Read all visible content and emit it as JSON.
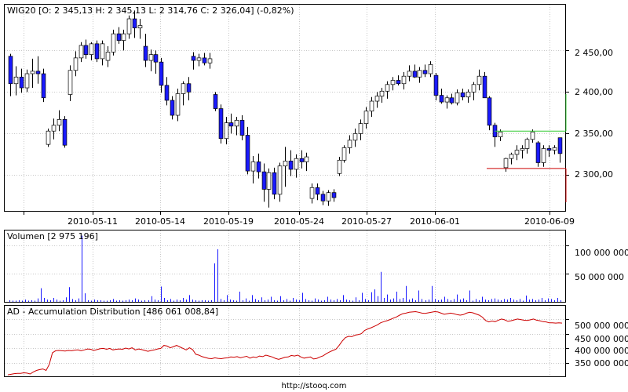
{
  "footer": "http://stooq.com",
  "colors": {
    "down": "#1a1aff",
    "up": "#ffffff",
    "candle_border": "#000000",
    "volume": "#1a1aff",
    "ad_line": "#cc0000",
    "marker_green": "#33cc33",
    "marker_red": "#cc0000",
    "grid": "#c8c8c8",
    "frame": "#000000"
  },
  "chart_data": [
    {
      "type": "candlestick",
      "header": "WIG20 [O: 2 345,13  H: 2 345,13  L: 2 314,76  C: 2 326,04] (-0,82%)",
      "x_tick_labels": [
        "2010-05-11",
        "2010-05-14",
        "2010-05-19",
        "2010-05-24",
        "2010-05-27",
        "2010-06-01",
        "2010-06-09"
      ],
      "y_tick_labels": [
        "2 450,00",
        "2 400,00",
        "2 350,00",
        "2 300,00"
      ],
      "y_ticks": [
        2450,
        2400,
        2350,
        2300
      ],
      "ylim": [
        2257,
        2505
      ],
      "grid": true,
      "markers": {
        "green_level": 2353,
        "red_level": 2308
      },
      "ohlc": [
        [
          2443,
          2446,
          2395,
          2410
        ],
        [
          2410,
          2431,
          2396,
          2418
        ],
        [
          2418,
          2428,
          2399,
          2405
        ],
        [
          2405,
          2427,
          2400,
          2422
        ],
        [
          2422,
          2440,
          2405,
          2425
        ],
        [
          2425,
          2443,
          2410,
          2422
        ],
        [
          2422,
          2428,
          2388,
          2393
        ],
        [
          2337,
          2356,
          2334,
          2353
        ],
        [
          2353,
          2368,
          2343,
          2360
        ],
        [
          2360,
          2378,
          2353,
          2367
        ],
        [
          2367,
          2371,
          2333,
          2336
        ],
        [
          2397,
          2432,
          2389,
          2426
        ],
        [
          2426,
          2449,
          2419,
          2441
        ],
        [
          2441,
          2460,
          2436,
          2456
        ],
        [
          2456,
          2463,
          2440,
          2445
        ],
        [
          2445,
          2460,
          2438,
          2458
        ],
        [
          2458,
          2462,
          2436,
          2440
        ],
        [
          2440,
          2462,
          2432,
          2458
        ],
        [
          2438,
          2455,
          2430,
          2448
        ],
        [
          2448,
          2475,
          2444,
          2470
        ],
        [
          2470,
          2478,
          2458,
          2462
        ],
        [
          2462,
          2475,
          2450,
          2470
        ],
        [
          2470,
          2492,
          2464,
          2488
        ],
        [
          2488,
          2498,
          2465,
          2477
        ],
        [
          2477,
          2488,
          2464,
          2480
        ],
        [
          2455,
          2470,
          2430,
          2438
        ],
        [
          2438,
          2451,
          2425,
          2445
        ],
        [
          2445,
          2450,
          2422,
          2436
        ],
        [
          2436,
          2441,
          2399,
          2408
        ],
        [
          2408,
          2418,
          2384,
          2390
        ],
        [
          2390,
          2395,
          2367,
          2372
        ],
        [
          2372,
          2404,
          2365,
          2398
        ],
        [
          2398,
          2413,
          2384,
          2410
        ],
        [
          2410,
          2418,
          2390,
          2400
        ],
        [
          2443,
          2448,
          2427,
          2438
        ],
        [
          2438,
          2446,
          2431,
          2441
        ],
        [
          2441,
          2447,
          2432,
          2435
        ],
        [
          2435,
          2447,
          2428,
          2440
        ],
        [
          2397,
          2400,
          2377,
          2380
        ],
        [
          2380,
          2385,
          2338,
          2344
        ],
        [
          2344,
          2370,
          2337,
          2363
        ],
        [
          2363,
          2374,
          2350,
          2359
        ],
        [
          2359,
          2370,
          2348,
          2366
        ],
        [
          2366,
          2372,
          2342,
          2348
        ],
        [
          2348,
          2358,
          2301,
          2305
        ],
        [
          2305,
          2323,
          2290,
          2316
        ],
        [
          2316,
          2326,
          2296,
          2304
        ],
        [
          2304,
          2314,
          2268,
          2283
        ],
        [
          2283,
          2308,
          2261,
          2303
        ],
        [
          2303,
          2309,
          2271,
          2277
        ],
        [
          2277,
          2315,
          2268,
          2311
        ],
        [
          2311,
          2334,
          2286,
          2317
        ],
        [
          2317,
          2330,
          2299,
          2307
        ],
        [
          2307,
          2325,
          2297,
          2320
        ],
        [
          2320,
          2330,
          2308,
          2316
        ],
        [
          2316,
          2327,
          2305,
          2322
        ],
        [
          2272,
          2290,
          2266,
          2285
        ],
        [
          2285,
          2290,
          2270,
          2277
        ],
        [
          2277,
          2281,
          2264,
          2269
        ],
        [
          2269,
          2282,
          2263,
          2279
        ],
        [
          2279,
          2283,
          2268,
          2273
        ],
        [
          2302,
          2322,
          2299,
          2318
        ],
        [
          2318,
          2336,
          2315,
          2333
        ],
        [
          2333,
          2348,
          2326,
          2342
        ],
        [
          2342,
          2356,
          2334,
          2350
        ],
        [
          2350,
          2367,
          2342,
          2362
        ],
        [
          2362,
          2382,
          2356,
          2377
        ],
        [
          2377,
          2394,
          2370,
          2389
        ],
        [
          2389,
          2400,
          2381,
          2395
        ],
        [
          2395,
          2405,
          2387,
          2401
        ],
        [
          2401,
          2413,
          2392,
          2409
        ],
        [
          2409,
          2418,
          2402,
          2414
        ],
        [
          2414,
          2420,
          2408,
          2410
        ],
        [
          2410,
          2424,
          2403,
          2419
        ],
        [
          2419,
          2432,
          2413,
          2425
        ],
        [
          2425,
          2433,
          2417,
          2418
        ],
        [
          2418,
          2430,
          2411,
          2426
        ],
        [
          2426,
          2433,
          2418,
          2422
        ],
        [
          2422,
          2437,
          2418,
          2433
        ],
        [
          2420,
          2423,
          2390,
          2396
        ],
        [
          2396,
          2404,
          2386,
          2388
        ],
        [
          2388,
          2396,
          2380,
          2393
        ],
        [
          2393,
          2398,
          2385,
          2387
        ],
        [
          2387,
          2403,
          2384,
          2399
        ],
        [
          2399,
          2404,
          2390,
          2394
        ],
        [
          2394,
          2403,
          2387,
          2400
        ],
        [
          2400,
          2412,
          2390,
          2409
        ],
        [
          2409,
          2427,
          2402,
          2419
        ],
        [
          2419,
          2424,
          2393,
          2393
        ],
        [
          2393,
          2395,
          2354,
          2360
        ],
        [
          2360,
          2363,
          2334,
          2346
        ],
        [
          2346,
          2355,
          2341,
          2352
        ],
        [
          2309,
          2321,
          2304,
          2320
        ],
        [
          2320,
          2327,
          2313,
          2325
        ],
        [
          2325,
          2336,
          2318,
          2330
        ],
        [
          2330,
          2336,
          2320,
          2332
        ],
        [
          2332,
          2345,
          2326,
          2343
        ],
        [
          2343,
          2355,
          2339,
          2352
        ],
        [
          2339,
          2341,
          2310,
          2315
        ],
        [
          2315,
          2336,
          2310,
          2332
        ],
        [
          2332,
          2336,
          2322,
          2330
        ],
        [
          2330,
          2336,
          2325,
          2333
        ],
        [
          2345,
          2345,
          2315,
          2326
        ]
      ]
    },
    {
      "type": "bar",
      "header": "Volumen [2 975 196]",
      "y_tick_labels": [
        "100 000 000",
        "50 000 000"
      ],
      "y_ticks": [
        100000000,
        50000000
      ],
      "ylim": [
        0,
        126000000
      ],
      "grid": true,
      "values": [
        3000000,
        2000000,
        2000000,
        3000000,
        2000000,
        4000000,
        2000000,
        3000000,
        2000000,
        6000000,
        24000000,
        7000000,
        4000000,
        3000000,
        7000000,
        4000000,
        2000000,
        3000000,
        8000000,
        26000000,
        5000000,
        3000000,
        6000000,
        117000000,
        15000000,
        3000000,
        2000000,
        4000000,
        3000000,
        3000000,
        2000000,
        2000000,
        3000000,
        5000000,
        2000000,
        3000000,
        2000000,
        3000000,
        4000000,
        3000000,
        6000000,
        4000000,
        2000000,
        3000000,
        3000000,
        10000000,
        4000000,
        3000000,
        27000000,
        7000000,
        3000000,
        5000000,
        2000000,
        4000000,
        3000000,
        7000000,
        4000000,
        12000000,
        4000000,
        3000000,
        2000000,
        3000000,
        3000000,
        2000000,
        3000000,
        68000000,
        93000000,
        5000000,
        3000000,
        12000000,
        4000000,
        3000000,
        2000000,
        18000000,
        3000000,
        6000000,
        2000000,
        12000000,
        5000000,
        3000000,
        8000000,
        3000000,
        4000000,
        9000000,
        3000000,
        2000000,
        10000000,
        3000000,
        5000000,
        2000000,
        7000000,
        4000000,
        3000000,
        16000000,
        5000000,
        3000000,
        2000000,
        6000000,
        4000000,
        2000000,
        3000000,
        9000000,
        4000000,
        3000000,
        5000000,
        3000000,
        12000000,
        4000000,
        3000000,
        2000000,
        8000000,
        3000000,
        16000000,
        5000000,
        3000000,
        17000000,
        22000000,
        10000000,
        53000000,
        7000000,
        13000000,
        4000000,
        6000000,
        18000000,
        5000000,
        7000000,
        28000000,
        4000000,
        6000000,
        3000000,
        20000000,
        5000000,
        3000000,
        4000000,
        28000000,
        5000000,
        3000000,
        4000000,
        9000000,
        5000000,
        3000000,
        5000000,
        13000000,
        4000000,
        6000000,
        3000000,
        20000000,
        2000000,
        5000000,
        3000000,
        9000000,
        4000000,
        3000000,
        5000000,
        6000000,
        4000000,
        3000000,
        5000000,
        4000000,
        7000000,
        4000000,
        3000000,
        5000000,
        2000000,
        11000000,
        4000000,
        5000000,
        3000000,
        4000000,
        7000000,
        3000000,
        6000000,
        5000000,
        3000000,
        7000000,
        3000000
      ]
    },
    {
      "type": "line",
      "header": "AD - Accumulation Distribution [486 061 008,84]",
      "y_tick_labels": [
        "500 000 000",
        "450 000 000",
        "400 000 000",
        "350 000 000"
      ],
      "y_ticks": [
        500000000,
        450000000,
        400000000,
        350000000
      ],
      "ylim": [
        305000000,
        545000000
      ],
      "grid": true,
      "values": [
        310000000,
        312000000,
        314000000,
        315000000,
        315000000,
        317000000,
        316000000,
        313000000,
        320000000,
        325000000,
        328000000,
        330000000,
        325000000,
        345000000,
        385000000,
        392000000,
        393000000,
        392000000,
        391000000,
        393000000,
        392000000,
        394000000,
        395000000,
        392000000,
        395000000,
        398000000,
        397000000,
        393000000,
        396000000,
        399000000,
        400000000,
        397000000,
        400000000,
        395000000,
        397000000,
        398000000,
        397000000,
        401000000,
        398000000,
        402000000,
        395000000,
        398000000,
        396000000,
        393000000,
        390000000,
        393000000,
        395000000,
        398000000,
        400000000,
        410000000,
        408000000,
        402000000,
        406000000,
        410000000,
        405000000,
        400000000,
        395000000,
        402000000,
        396000000,
        380000000,
        377000000,
        372000000,
        369000000,
        366000000,
        365000000,
        368000000,
        366000000,
        365000000,
        367000000,
        368000000,
        371000000,
        370000000,
        372000000,
        368000000,
        371000000,
        373000000,
        367000000,
        371000000,
        369000000,
        374000000,
        372000000,
        377000000,
        374000000,
        371000000,
        366000000,
        363000000,
        366000000,
        370000000,
        371000000,
        376000000,
        374000000,
        377000000,
        371000000,
        367000000,
        369000000,
        371000000,
        364000000,
        366000000,
        371000000,
        375000000,
        382000000,
        388000000,
        393000000,
        397000000,
        410000000,
        425000000,
        437000000,
        441000000,
        440000000,
        445000000,
        447000000,
        450000000,
        461000000,
        466000000,
        470000000,
        475000000,
        480000000,
        487000000,
        491000000,
        494000000,
        498000000,
        503000000,
        507000000,
        513000000,
        518000000,
        520000000,
        523000000,
        524000000,
        525000000,
        523000000,
        520000000,
        519000000,
        521000000,
        523000000,
        525000000,
        524000000,
        520000000,
        516000000,
        518000000,
        520000000,
        518000000,
        515000000,
        513000000,
        515000000,
        520000000,
        523000000,
        521000000,
        517000000,
        513000000,
        506000000,
        495000000,
        490000000,
        493000000,
        491000000,
        496000000,
        500000000,
        497000000,
        492000000,
        494000000,
        497000000,
        500000000,
        498000000,
        496000000,
        495000000,
        497000000,
        500000000,
        496000000,
        494000000,
        491000000,
        490000000,
        487000000,
        487000000,
        486000000,
        487000000,
        486000000
      ]
    }
  ]
}
